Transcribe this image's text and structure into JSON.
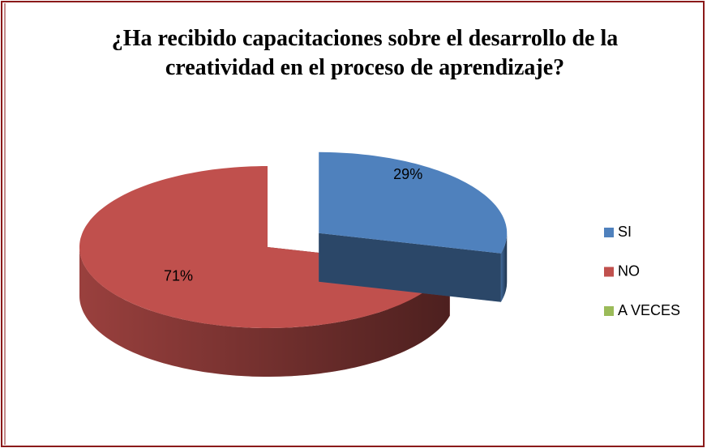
{
  "chart_data": {
    "type": "pie3d",
    "title": "¿Ha recibido capacitaciones sobre el desarrollo de la creatividad en el proceso de aprendizaje?",
    "categories": [
      "SI",
      "NO",
      "A VECES"
    ],
    "values": [
      29,
      71,
      0
    ],
    "value_labels": [
      "29%",
      "71%",
      null
    ],
    "colors": [
      "#4f81bd",
      "#c0504d",
      "#9bbb59"
    ],
    "exploded": [
      true,
      false,
      false
    ],
    "legend": "right"
  }
}
